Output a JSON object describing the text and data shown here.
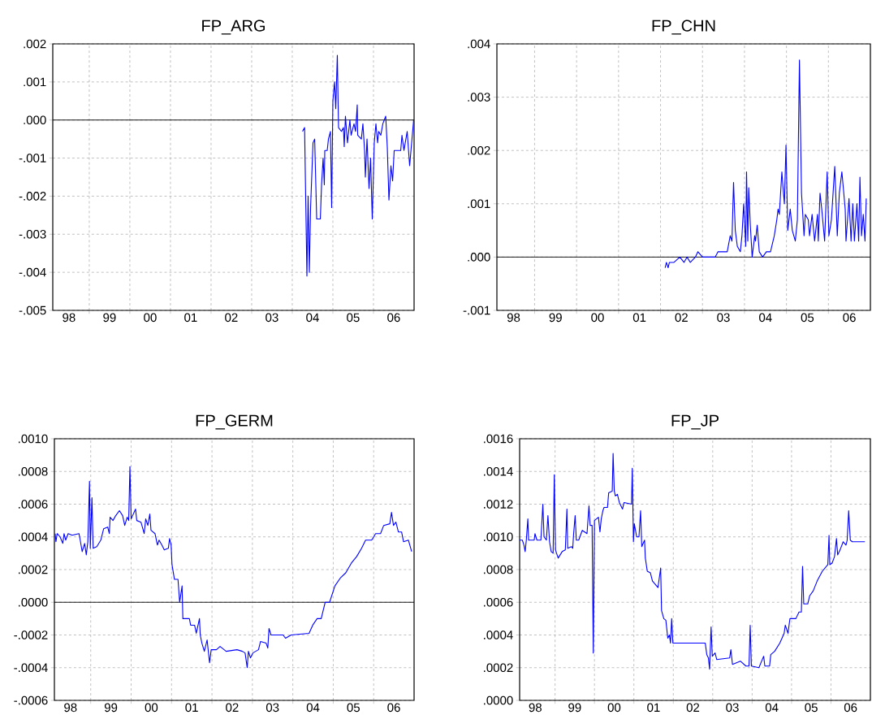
{
  "chart_data": [
    {
      "type": "line",
      "title": "FP_ARG",
      "color": "#0000ff",
      "grid": true,
      "xlim": [
        "1998-02-07",
        "2007-01-01"
      ],
      "ylim": [
        -0.005,
        0.002
      ],
      "xticks": [
        {
          "value": "1998-07-02",
          "label": "98"
        },
        {
          "value": "1999-01-01",
          "label": null
        },
        {
          "value": "1999-07-02",
          "label": "99"
        },
        {
          "value": "2000-01-01",
          "label": null
        },
        {
          "value": "2000-07-02",
          "label": "00"
        },
        {
          "value": "2001-01-01",
          "label": null
        },
        {
          "value": "2001-07-02",
          "label": "01"
        },
        {
          "value": "2002-01-01",
          "label": null
        },
        {
          "value": "2002-07-02",
          "label": "02"
        },
        {
          "value": "2003-01-01",
          "label": null
        },
        {
          "value": "2003-07-02",
          "label": "03"
        },
        {
          "value": "2004-01-01",
          "label": null
        },
        {
          "value": "2004-07-02",
          "label": "04"
        },
        {
          "value": "2005-01-01",
          "label": null
        },
        {
          "value": "2005-07-02",
          "label": "05"
        },
        {
          "value": "2006-01-01",
          "label": null
        },
        {
          "value": "2006-07-02",
          "label": "06"
        }
      ],
      "yticks": [
        {
          "value": -0.005,
          "label": "-.005"
        },
        {
          "value": -0.004,
          "label": "-.004"
        },
        {
          "value": -0.003,
          "label": "-.003"
        },
        {
          "value": -0.002,
          "label": "-.002"
        },
        {
          "value": -0.001,
          "label": "-.001"
        },
        {
          "value": 0,
          "label": ".000"
        },
        {
          "value": 0.001,
          "label": ".001"
        },
        {
          "value": 0.002,
          "label": ".002"
        }
      ],
      "ref_lines": [
        {
          "axis": "y",
          "value": 0,
          "color": "#000000"
        }
      ],
      "x": [
        "2004-04-02",
        "2004-04-21",
        "2004-05-12",
        "2004-05-23",
        "2004-06-03",
        "2004-06-14",
        "2004-07-06",
        "2004-07-21",
        "2004-08-08",
        "2004-09-10",
        "2004-09-21",
        "2004-10-05",
        "2004-10-16",
        "2004-10-20",
        "2004-11-11",
        "2004-11-22",
        "2004-12-10",
        "2004-12-21",
        "2005-01-01",
        "2005-01-16",
        "2005-01-27",
        "2005-02-10",
        "2005-02-21",
        "2005-03-19",
        "2005-04-06",
        "2005-04-13",
        "2005-04-24",
        "2005-05-12",
        "2005-06-03",
        "2005-06-14",
        "2005-07-10",
        "2005-07-24",
        "2005-08-08",
        "2005-08-12",
        "2005-09-14",
        "2005-09-28",
        "2005-10-13",
        "2005-10-20",
        "2005-11-04",
        "2005-11-22",
        "2005-12-06",
        "2005-12-21",
        "2006-01-08",
        "2006-01-23",
        "2006-02-07",
        "2006-02-17",
        "2006-03-08",
        "2006-03-26",
        "2006-04-21",
        "2006-05-05",
        "2006-05-20",
        "2006-06-07",
        "2006-06-22",
        "2006-07-06",
        "2006-09-03",
        "2006-09-14",
        "2006-10-02",
        "2006-10-31",
        "2006-11-22",
        "2006-12-28"
      ],
      "values": [
        -0.0003,
        -0.0002,
        -0.0041,
        -0.002,
        -0.004,
        -0.0023,
        -0.0006,
        -0.0005,
        -0.0026,
        -0.0026,
        -0.0017,
        -0.001,
        -0.0017,
        -0.0008,
        -0.0008,
        -0.0005,
        -0.0003,
        -0.0023,
        0.0005,
        0.001,
        0.0003,
        0.0017,
        -0.0002,
        -0.0003,
        -0.0002,
        -0.0007,
        0.0001,
        -0.0006,
        0.0,
        -0.0004,
        -0.0001,
        -0.0003,
        0.0004,
        -0.0004,
        -0.0005,
        -0.0001,
        -0.0008,
        -0.0015,
        -0.0005,
        -0.0018,
        -0.001,
        -0.0026,
        -0.0006,
        -0.0001,
        -0.0006,
        -0.0003,
        -0.0004,
        -0.0001,
        0.0001,
        -0.0007,
        -0.0021,
        -0.0012,
        -0.0016,
        -0.0008,
        -0.0008,
        -0.0004,
        -0.0008,
        -0.0003,
        -0.0012,
        0.0
      ]
    },
    {
      "type": "line",
      "title": "FP_CHN",
      "color": "#0000ff",
      "grid": true,
      "xlim": [
        "1998-02-07",
        "2007-01-01"
      ],
      "ylim": [
        -0.001,
        0.004
      ],
      "xticks": [
        {
          "value": "1998-07-02",
          "label": "98"
        },
        {
          "value": "1999-01-01",
          "label": null
        },
        {
          "value": "1999-07-02",
          "label": "99"
        },
        {
          "value": "2000-01-01",
          "label": null
        },
        {
          "value": "2000-07-02",
          "label": "00"
        },
        {
          "value": "2001-01-01",
          "label": null
        },
        {
          "value": "2001-07-02",
          "label": "01"
        },
        {
          "value": "2002-01-01",
          "label": null
        },
        {
          "value": "2002-07-02",
          "label": "02"
        },
        {
          "value": "2003-01-01",
          "label": null
        },
        {
          "value": "2003-07-02",
          "label": "03"
        },
        {
          "value": "2004-01-01",
          "label": null
        },
        {
          "value": "2004-07-02",
          "label": "04"
        },
        {
          "value": "2005-01-01",
          "label": null
        },
        {
          "value": "2005-07-02",
          "label": "05"
        },
        {
          "value": "2006-01-01",
          "label": null
        },
        {
          "value": "2006-07-02",
          "label": "06"
        }
      ],
      "yticks": [
        {
          "value": -0.001,
          "label": "-.001"
        },
        {
          "value": 0,
          "label": ".000"
        },
        {
          "value": 0.001,
          "label": ".001"
        },
        {
          "value": 0.002,
          "label": ".002"
        },
        {
          "value": 0.003,
          "label": ".003"
        },
        {
          "value": 0.004,
          "label": ".004"
        }
      ],
      "ref_lines": [
        {
          "axis": "y",
          "value": 0,
          "color": "#000000"
        }
      ],
      "x": [
        "2002-02-10",
        "2002-02-21",
        "2002-03-08",
        "2002-03-19",
        "2002-04-28",
        "2002-06-18",
        "2002-07-24",
        "2002-08-19",
        "2002-09-17",
        "2002-10-31",
        "2002-11-22",
        "2003-01-01",
        "2003-02-07",
        "2003-04-21",
        "2003-05-16",
        "2003-06-18",
        "2003-07-06",
        "2003-08-04",
        "2003-08-30",
        "2003-09-14",
        "2003-09-28",
        "2003-10-13",
        "2003-10-31",
        "2003-11-26",
        "2003-12-10",
        "2003-12-25",
        "2004-01-12",
        "2004-01-19",
        "2004-01-30",
        "2004-02-07",
        "2004-02-21",
        "2004-03-08",
        "2004-03-30",
        "2004-04-06",
        "2004-04-21",
        "2004-05-09",
        "2004-06-07",
        "2004-07-10",
        "2004-08-15",
        "2004-09-17",
        "2004-10-09",
        "2004-10-20",
        "2004-10-31",
        "2004-11-22",
        "2004-12-06",
        "2004-12-14",
        "2004-12-28",
        "2005-01-12",
        "2005-02-03",
        "2005-02-21",
        "2005-03-19",
        "2005-04-06",
        "2005-04-24",
        "2005-05-12",
        "2005-06-03",
        "2005-06-14",
        "2005-07-10",
        "2005-07-21",
        "2005-08-12",
        "2005-09-03",
        "2005-09-28",
        "2005-10-05",
        "2005-10-20",
        "2005-11-04",
        "2005-11-29",
        "2005-12-21",
        "2006-01-05",
        "2006-01-27",
        "2006-02-25",
        "2006-03-19",
        "2006-04-06",
        "2006-04-28",
        "2006-05-27",
        "2006-06-03",
        "2006-06-29",
        "2006-07-17",
        "2006-08-01",
        "2006-08-15",
        "2006-09-06",
        "2006-09-21",
        "2006-10-02",
        "2006-10-16",
        "2006-10-31",
        "2006-11-15",
        "2006-11-26"
      ],
      "values": [
        -0.0002,
        -0.0001,
        -0.0002,
        -0.0001,
        -0.0001,
        0.0,
        -0.0001,
        0.0,
        -0.0001,
        0.0,
        0.0001,
        0.0,
        0.0,
        0.0,
        0.0001,
        0.0001,
        0.0001,
        0.0001,
        0.0004,
        0.0003,
        0.0014,
        0.0005,
        0.0002,
        0.0001,
        0.0004,
        0.001,
        0.0002,
        0.0016,
        0.0003,
        0.0013,
        0.0006,
        0.0,
        0.0004,
        0.0003,
        0.0006,
        0.0001,
        0.0,
        0.0001,
        0.0001,
        0.0004,
        0.0007,
        0.0009,
        0.0008,
        0.0016,
        0.0012,
        0.001,
        0.0021,
        0.0005,
        0.0009,
        0.0005,
        0.0003,
        0.0007,
        0.0037,
        0.0012,
        0.0004,
        0.0008,
        0.0007,
        0.0004,
        0.0008,
        0.0003,
        0.0008,
        0.0003,
        0.0012,
        0.0009,
        0.0003,
        0.0016,
        0.0004,
        0.0007,
        0.0017,
        0.0004,
        0.0012,
        0.0016,
        0.0009,
        0.0003,
        0.0011,
        0.0003,
        0.001,
        0.0003,
        0.001,
        0.0003,
        0.0015,
        0.0004,
        0.0008,
        0.0003,
        0.0011
      ]
    },
    {
      "type": "line",
      "title": "FP_GERM",
      "color": "#0000ff",
      "grid": true,
      "xlim": [
        "1998-02-07",
        "2007-01-01"
      ],
      "ylim": [
        -0.0006,
        0.001
      ],
      "xticks": [
        {
          "value": "1998-07-02",
          "label": "98"
        },
        {
          "value": "1999-01-01",
          "label": null
        },
        {
          "value": "1999-07-02",
          "label": "99"
        },
        {
          "value": "2000-01-01",
          "label": null
        },
        {
          "value": "2000-07-02",
          "label": "00"
        },
        {
          "value": "2001-01-01",
          "label": null
        },
        {
          "value": "2001-07-02",
          "label": "01"
        },
        {
          "value": "2002-01-01",
          "label": null
        },
        {
          "value": "2002-07-02",
          "label": "02"
        },
        {
          "value": "2003-01-01",
          "label": null
        },
        {
          "value": "2003-07-02",
          "label": "03"
        },
        {
          "value": "2004-01-01",
          "label": null
        },
        {
          "value": "2004-07-02",
          "label": "04"
        },
        {
          "value": "2005-01-01",
          "label": null
        },
        {
          "value": "2005-07-02",
          "label": "05"
        },
        {
          "value": "2006-01-01",
          "label": null
        },
        {
          "value": "2006-07-02",
          "label": "06"
        }
      ],
      "yticks": [
        {
          "value": -0.0006,
          "label": "-.0006"
        },
        {
          "value": -0.0004,
          "label": "-.0004"
        },
        {
          "value": -0.0002,
          "label": "-.0002"
        },
        {
          "value": 0,
          "label": ".0000"
        },
        {
          "value": 0.0002,
          "label": ".0002"
        },
        {
          "value": 0.0004,
          "label": ".0004"
        },
        {
          "value": 0.0006,
          "label": ".0006"
        },
        {
          "value": 0.0008,
          "label": ".0008"
        },
        {
          "value": 0.001,
          "label": ".0010"
        }
      ],
      "ref_lines": [
        {
          "axis": "y",
          "value": 0,
          "color": "#000000"
        }
      ],
      "x": [
        "1998-02-14",
        "1998-02-21",
        "1998-03-04",
        "1998-03-30",
        "1998-04-24",
        "1998-05-05",
        "1998-05-20",
        "1998-06-11",
        "1998-07-17",
        "1998-09-17",
        "1998-09-28",
        "1998-10-16",
        "1998-11-07",
        "1998-11-22",
        "1998-12-06",
        "1998-12-21",
        "1998-12-28",
        "1999-01-12",
        "1999-01-23",
        "1999-02-25",
        "1999-04-02",
        "1999-04-28",
        "1999-06-03",
        "1999-06-18",
        "1999-06-25",
        "1999-07-21",
        "1999-08-15",
        "1999-09-17",
        "1999-10-16",
        "1999-11-04",
        "1999-11-26",
        "1999-12-10",
        "1999-12-21",
        "2000-01-01",
        "2000-02-10",
        "2000-02-21",
        "2000-03-30",
        "2000-04-28",
        "2000-05-12",
        "2000-05-31",
        "2000-06-18",
        "2000-06-29",
        "2000-08-04",
        "2000-08-26",
        "2000-09-10",
        "2000-10-05",
        "2000-10-27",
        "2000-12-03",
        "2000-12-14",
        "2000-12-28",
        "2001-01-05",
        "2001-01-27",
        "2001-02-28",
        "2001-03-15",
        "2001-04-06",
        "2001-04-13",
        "2001-05-09",
        "2001-06-11",
        "2001-06-22",
        "2001-07-28",
        "2001-08-12",
        "2001-09-10",
        "2001-09-17",
        "2001-10-02",
        "2001-10-24",
        "2001-11-18",
        "2001-12-10",
        "2001-12-25",
        "2002-02-10",
        "2002-03-15",
        "2002-05-09",
        "2002-08-15",
        "2002-10-02",
        "2002-10-27",
        "2002-11-15",
        "2002-11-26",
        "2002-12-14",
        "2003-01-05",
        "2003-02-25",
        "2003-03-15",
        "2003-05-05",
        "2003-05-20",
        "2003-05-31",
        "2003-06-18",
        "2003-10-05",
        "2003-10-27",
        "2003-12-17",
        "2004-05-27",
        "2004-06-29",
        "2004-08-08",
        "2004-09-14",
        "2004-10-20",
        "2004-11-29",
        "2005-01-16",
        "2005-03-08",
        "2005-04-24",
        "2005-06-14",
        "2005-08-01",
        "2005-09-14",
        "2005-10-20",
        "2005-12-14",
        "2006-01-19",
        "2006-03-04",
        "2006-04-02",
        "2006-05-27",
        "2006-06-11",
        "2006-06-29",
        "2006-07-21",
        "2006-08-12",
        "2006-09-10",
        "2006-09-28",
        "2006-11-11",
        "2006-12-10"
      ],
      "values": [
        0.00042,
        0.00037,
        0.00042,
        0.0004,
        0.00036,
        0.00042,
        0.00038,
        0.00042,
        0.00041,
        0.00042,
        0.00038,
        0.00031,
        0.00036,
        0.00029,
        0.00037,
        0.00074,
        0.00033,
        0.00064,
        0.00033,
        0.00034,
        0.00038,
        0.00045,
        0.00046,
        0.00042,
        0.00052,
        0.0005,
        0.00053,
        0.00056,
        0.00053,
        0.00047,
        0.00052,
        0.0005,
        0.00083,
        0.00051,
        0.00057,
        0.0005,
        0.00049,
        0.00042,
        0.00051,
        0.00047,
        0.00054,
        0.00044,
        0.00042,
        0.00035,
        0.00038,
        0.00035,
        0.00032,
        0.00033,
        0.00039,
        0.00035,
        0.00023,
        0.00014,
        0.00014,
        0.0,
        0.0001,
        -0.0001,
        -0.0001,
        -0.0001,
        -0.00014,
        -0.00014,
        -0.00019,
        -0.0001,
        -0.0002,
        -0.00025,
        -0.0003,
        -0.00023,
        -0.00037,
        -0.00029,
        -0.00029,
        -0.00027,
        -0.0003,
        -0.00029,
        -0.0003,
        -0.00031,
        -0.0004,
        -0.0003,
        -0.00034,
        -0.00031,
        -0.00029,
        -0.00024,
        -0.00025,
        -0.00028,
        -0.00016,
        -0.0002,
        -0.0002,
        -0.00022,
        -0.0002,
        -0.00019,
        -0.00014,
        -0.0001,
        -0.0001,
        0.0,
        0.0,
        0.0001,
        0.00015,
        0.00018,
        0.00024,
        0.00028,
        0.00033,
        0.00038,
        0.00038,
        0.00042,
        0.00042,
        0.00047,
        0.00048,
        0.00055,
        0.00047,
        0.00049,
        0.00043,
        0.00043,
        0.00037,
        0.00038,
        0.00031
      ]
    },
    {
      "type": "line",
      "title": "FP_JP",
      "color": "#0000ff",
      "grid": true,
      "xlim": [
        "1998-02-07",
        "2007-01-01"
      ],
      "ylim": [
        0,
        0.0016
      ],
      "xticks": [
        {
          "value": "1998-07-02",
          "label": "98"
        },
        {
          "value": "1999-01-01",
          "label": null
        },
        {
          "value": "1999-07-02",
          "label": "99"
        },
        {
          "value": "2000-01-01",
          "label": null
        },
        {
          "value": "2000-07-02",
          "label": "00"
        },
        {
          "value": "2001-01-01",
          "label": null
        },
        {
          "value": "2001-07-02",
          "label": "01"
        },
        {
          "value": "2002-01-01",
          "label": null
        },
        {
          "value": "2002-07-02",
          "label": "02"
        },
        {
          "value": "2003-01-01",
          "label": null
        },
        {
          "value": "2003-07-02",
          "label": "03"
        },
        {
          "value": "2004-01-01",
          "label": null
        },
        {
          "value": "2004-07-02",
          "label": "04"
        },
        {
          "value": "2005-01-01",
          "label": null
        },
        {
          "value": "2005-07-02",
          "label": "05"
        },
        {
          "value": "2006-01-01",
          "label": null
        },
        {
          "value": "2006-07-02",
          "label": "06"
        }
      ],
      "yticks": [
        {
          "value": 0,
          "label": ".0000"
        },
        {
          "value": 0.0002,
          "label": ".0002"
        },
        {
          "value": 0.0004,
          "label": ".0004"
        },
        {
          "value": 0.0006,
          "label": ".0006"
        },
        {
          "value": 0.0008,
          "label": ".0008"
        },
        {
          "value": 0.001,
          "label": ".0010"
        },
        {
          "value": 0.0012,
          "label": ".0012"
        },
        {
          "value": 0.0014,
          "label": ".0014"
        },
        {
          "value": 0.0016,
          "label": ".0016"
        }
      ],
      "x": [
        "1998-02-07",
        "1998-03-04",
        "1998-03-19",
        "1998-03-30",
        "1998-04-10",
        "1998-04-24",
        "1998-05-01",
        "1998-06-22",
        "1998-06-29",
        "1998-07-17",
        "1998-08-23",
        "1998-09-10",
        "1998-09-21",
        "1998-10-13",
        "1998-10-27",
        "1998-11-11",
        "1998-11-26",
        "1998-12-14",
        "1998-12-25",
        "1999-01-05",
        "1999-01-30",
        "1999-03-08",
        "1999-04-06",
        "1999-04-21",
        "1999-04-28",
        "1999-06-03",
        "1999-06-14",
        "1999-06-22",
        "1999-07-06",
        "1999-07-17",
        "1999-08-08",
        "1999-09-10",
        "1999-10-24",
        "1999-11-11",
        "1999-11-22",
        "1999-12-10",
        "1999-12-21",
        "2000-01-01",
        "2000-02-07",
        "2000-02-21",
        "2000-03-04",
        "2000-03-19",
        "2000-03-30",
        "2000-05-01",
        "2000-05-12",
        "2000-06-14",
        "2000-06-22",
        "2000-07-03",
        "2000-07-13",
        "2000-08-01",
        "2000-08-19",
        "2000-09-17",
        "2000-10-02",
        "2000-12-10",
        "2000-12-17",
        "2000-12-28",
        "2001-01-05",
        "2001-01-27",
        "2001-02-17",
        "2001-03-04",
        "2001-03-15",
        "2001-04-10",
        "2001-04-17",
        "2001-05-05",
        "2001-06-03",
        "2001-06-22",
        "2001-08-12",
        "2001-09-06",
        "2001-09-14",
        "2001-10-05",
        "2001-10-24",
        "2001-11-11",
        "2001-11-26",
        "2001-12-06",
        "2001-12-17",
        "2001-12-28",
        "2002-04-13",
        "2002-07-21",
        "2002-10-24",
        "2002-11-07",
        "2002-11-22",
        "2002-12-03",
        "2002-12-17",
        "2002-12-28",
        "2003-01-23",
        "2003-02-07",
        "2003-06-07",
        "2003-06-18",
        "2003-07-03",
        "2003-09-14",
        "2003-11-04",
        "2003-12-03",
        "2003-12-14",
        "2003-12-25",
        "2004-03-04",
        "2004-04-17",
        "2004-04-28",
        "2004-06-11",
        "2004-06-22",
        "2004-07-28",
        "2004-09-14",
        "2004-10-24",
        "2004-11-04",
        "2004-11-29",
        "2004-12-17",
        "2005-02-10",
        "2005-03-11",
        "2005-04-02",
        "2005-04-13",
        "2005-04-24",
        "2005-05-31",
        "2005-06-18",
        "2005-07-21",
        "2005-08-26",
        "2005-10-13",
        "2005-12-03",
        "2005-12-14",
        "2005-12-21",
        "2006-01-12",
        "2006-02-03",
        "2006-02-21",
        "2006-03-04",
        "2006-03-26",
        "2006-04-24",
        "2006-05-20",
        "2006-05-31",
        "2006-06-14",
        "2006-06-29",
        "2006-07-17",
        "2006-09-21",
        "2006-11-11"
      ],
      "values": [
        0.00098,
        0.00098,
        0.00095,
        0.00091,
        0.00098,
        0.00111,
        0.00098,
        0.00098,
        0.00102,
        0.00098,
        0.00098,
        0.0012,
        0.001,
        0.00098,
        0.00113,
        0.00097,
        0.00091,
        0.0009,
        0.00138,
        0.00092,
        0.00087,
        0.00091,
        0.00092,
        0.00117,
        0.00093,
        0.00094,
        0.00093,
        0.00102,
        0.00113,
        0.00098,
        0.00098,
        0.00104,
        0.00102,
        0.00119,
        0.00107,
        0.00107,
        0.00029,
        0.0011,
        0.00112,
        0.00103,
        0.00111,
        0.00116,
        0.00118,
        0.00118,
        0.00127,
        0.00128,
        0.00151,
        0.00128,
        0.00125,
        0.00126,
        0.00121,
        0.00117,
        0.00121,
        0.0012,
        0.00142,
        0.00097,
        0.00108,
        0.001,
        0.001,
        0.00116,
        0.00094,
        0.00098,
        0.00087,
        0.00079,
        0.00078,
        0.00073,
        0.00069,
        0.00081,
        0.00055,
        0.0005,
        0.00049,
        0.00038,
        0.0004,
        0.00035,
        0.0005,
        0.00035,
        0.00035,
        0.00035,
        0.00035,
        0.00028,
        0.00026,
        0.00019,
        0.00045,
        0.00027,
        0.00029,
        0.00025,
        0.00026,
        0.00031,
        0.00022,
        0.00024,
        0.00021,
        0.00021,
        0.00046,
        0.00021,
        0.0002,
        0.00027,
        0.00021,
        0.00021,
        0.00028,
        0.0003,
        0.00035,
        0.00041,
        0.00046,
        0.00041,
        0.0005,
        0.0005,
        0.00054,
        0.00054,
        0.00082,
        0.00059,
        0.00059,
        0.00064,
        0.00067,
        0.00073,
        0.00079,
        0.00083,
        0.00101,
        0.00083,
        0.00084,
        0.00088,
        0.00099,
        0.00089,
        0.00092,
        0.00097,
        0.00095,
        0.00098,
        0.00116,
        0.00098,
        0.00097,
        0.00097,
        0.00097
      ]
    }
  ]
}
